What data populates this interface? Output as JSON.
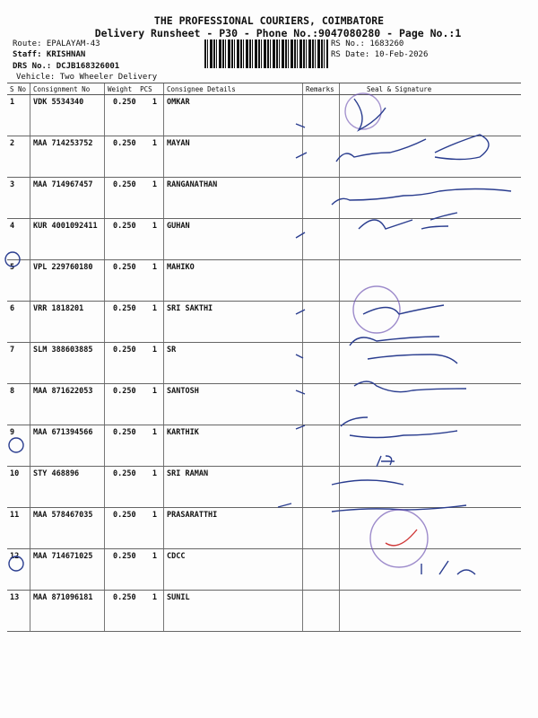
{
  "header": {
    "company": "THE PROFESSIONAL COURIERS, COIMBATORE",
    "subtitle": "Delivery Runsheet - P30 - Phone No.:9047080280 - Page No.:1",
    "route": "Route: EPALAYAM-43",
    "staff": "Staff: KRISHNAN",
    "drs": "DRS No.: DCJB168326001",
    "vehicle": "Vehicle: Two Wheeler Delivery",
    "rs_no": "RS No.: 1683260",
    "rs_date": "RS Date: 10-Feb-2026"
  },
  "columns": [
    "S No",
    "Consignment No",
    "Weight",
    "PCS",
    "Consignee Details",
    "Remarks",
    "Seal & Signature"
  ],
  "rows": [
    {
      "sno": "1",
      "cn": "VDK 5534340",
      "wt": "0.250",
      "pcs": "1",
      "name": "OMKAR"
    },
    {
      "sno": "2",
      "cn": "MAA 714253752",
      "wt": "0.250",
      "pcs": "1",
      "name": "MAYAN"
    },
    {
      "sno": "3",
      "cn": "MAA 714967457",
      "wt": "0.250",
      "pcs": "1",
      "name": "RANGANATHAN"
    },
    {
      "sno": "4",
      "cn": "KUR 4001092411",
      "wt": "0.250",
      "pcs": "1",
      "name": "GUHAN"
    },
    {
      "sno": "5",
      "cn": "VPL 229760180",
      "wt": "0.250",
      "pcs": "1",
      "name": "MAHIKO"
    },
    {
      "sno": "6",
      "cn": "VRR 1818201",
      "wt": "0.250",
      "pcs": "1",
      "name": "SRI SAKTHI"
    },
    {
      "sno": "7",
      "cn": "SLM 388603885",
      "wt": "0.250",
      "pcs": "1",
      "name": "SR"
    },
    {
      "sno": "8",
      "cn": "MAA 871622053",
      "wt": "0.250",
      "pcs": "1",
      "name": "SANTOSH"
    },
    {
      "sno": "9",
      "cn": "MAA 671394566",
      "wt": "0.250",
      "pcs": "1",
      "name": "KARTHIK"
    },
    {
      "sno": "10",
      "cn": "STY 468896",
      "wt": "0.250",
      "pcs": "1",
      "name": "SRI RAMAN"
    },
    {
      "sno": "11",
      "cn": "MAA 578467035",
      "wt": "0.250",
      "pcs": "1",
      "name": "PRASARATTHI"
    },
    {
      "sno": "12",
      "cn": "MAA 714671025",
      "wt": "0.250",
      "pcs": "1",
      "name": "CDCC"
    },
    {
      "sno": "13",
      "cn": "MAA 871096181",
      "wt": "0.250",
      "pcs": "1",
      "name": "SUNIL"
    }
  ],
  "colors": {
    "ink": "#111111",
    "pen": "#2a3d8f",
    "stamp": "#6a4fb0"
  }
}
